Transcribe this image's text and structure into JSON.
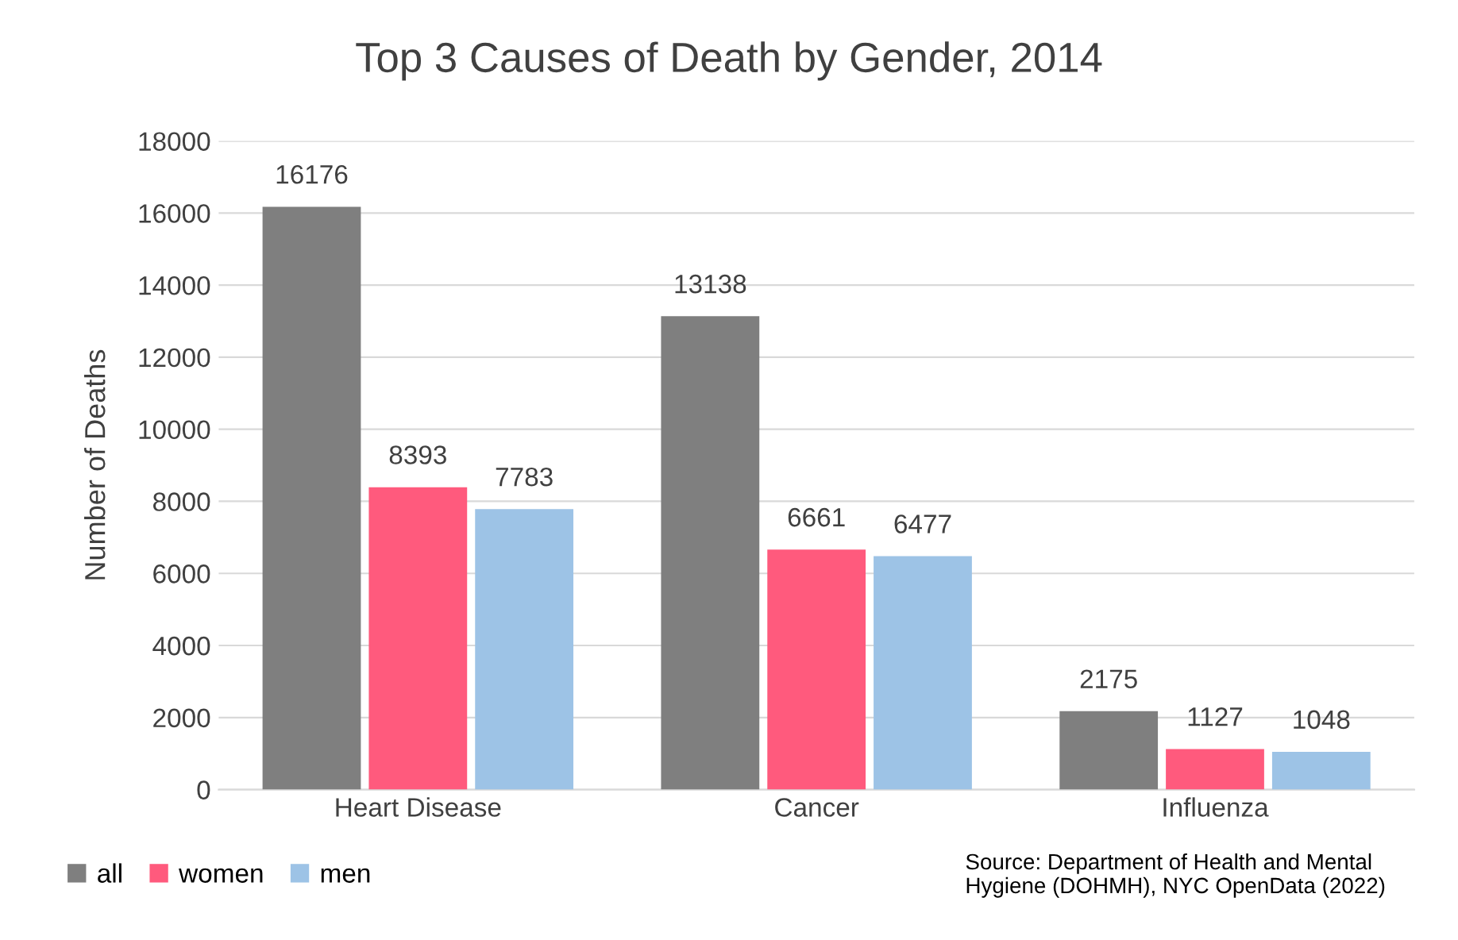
{
  "chart_data": {
    "type": "bar",
    "title": "Top 3 Causes of Death by Gender, 2014",
    "ylabel": "Number of Deaths",
    "categories": [
      "Heart Disease",
      "Cancer",
      "Influenza"
    ],
    "series": [
      {
        "name": "all",
        "color": "#7f7f7f",
        "values": [
          16176,
          13138,
          2175
        ]
      },
      {
        "name": "women",
        "color": "#ff5a7d",
        "values": [
          8393,
          6661,
          1127
        ]
      },
      {
        "name": "men",
        "color": "#9dc3e6",
        "values": [
          7783,
          6477,
          1048
        ]
      }
    ],
    "ylim": [
      0,
      18000
    ],
    "yticks": [
      0,
      2000,
      4000,
      6000,
      8000,
      10000,
      12000,
      14000,
      16000,
      18000
    ],
    "grid": "y",
    "legend": "bottom left",
    "data_labels": true,
    "annotations": [
      "Source: Department of Health and Mental Hygiene (DOHMH), NYC OpenData (2022)"
    ]
  }
}
